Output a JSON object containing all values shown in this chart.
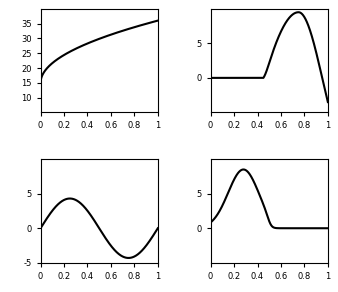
{
  "figsize": [
    3.38,
    2.92
  ],
  "dpi": 100,
  "plots": [
    {
      "ylim": [
        5,
        40
      ],
      "yticks": [
        10,
        15,
        20,
        25,
        30,
        35
      ],
      "xlim": [
        0,
        1
      ],
      "xticks": [
        0,
        0.2,
        0.4,
        0.6,
        0.8,
        1
      ]
    },
    {
      "ylim": [
        -5,
        10
      ],
      "yticks": [
        0,
        5
      ],
      "xlim": [
        0,
        1
      ],
      "xticks": [
        0,
        0.2,
        0.4,
        0.6,
        0.8,
        1
      ]
    },
    {
      "ylim": [
        -5,
        10
      ],
      "yticks": [
        -5,
        0,
        5
      ],
      "xlim": [
        0,
        1
      ],
      "xticks": [
        0,
        0.2,
        0.4,
        0.6,
        0.8,
        1
      ]
    },
    {
      "ylim": [
        -5,
        10
      ],
      "yticks": [
        0,
        5
      ],
      "xlim": [
        0,
        1
      ],
      "xticks": [
        0,
        0.2,
        0.4,
        0.6,
        0.8,
        1
      ]
    }
  ],
  "linewidth": 1.5,
  "linecolor": "black",
  "tick_fontsize": 6,
  "subplot_hspace": 0.45,
  "subplot_wspace": 0.45
}
